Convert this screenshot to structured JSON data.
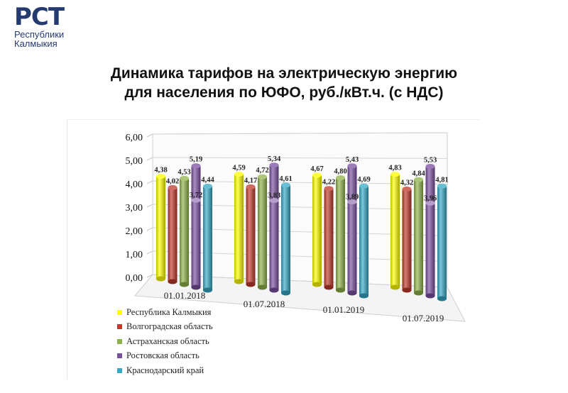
{
  "logo": {
    "mark": "РСТ",
    "line1": "Республики",
    "line2": "Калмыкия"
  },
  "title": {
    "line1": "Динамика тарифов на электрическую энергию",
    "line2": "для населения по ЮФО, руб./кВт.ч. (с НДС)"
  },
  "chart_data": {
    "type": "bar",
    "categories": [
      "01.01.2018",
      "01.07.2018",
      "01.01.2019",
      "01.07.2019"
    ],
    "series": [
      {
        "name": "Республика Калмыкия",
        "color": "#ffff00",
        "values": [
          "4,38",
          "4,59",
          "4,67",
          "4,83"
        ]
      },
      {
        "name": "Волгоградская область",
        "color": "#c0392b",
        "values": [
          "4,02",
          "4,17",
          "4,22",
          "4,32"
        ]
      },
      {
        "name": "Астраханская область",
        "color": "#8db348",
        "values": [
          "4,53",
          "4,72",
          "4,80",
          "4,84"
        ]
      },
      {
        "name": "Ростовская область",
        "color": "#7b4fa0",
        "values": [
          "5,19",
          "5,34",
          "5,43",
          "5,53"
        ]
      },
      {
        "name": "Краснодарский край",
        "color": "#35a9c6",
        "values": [
          "4,44",
          "4,61",
          "4,69",
          "4,81"
        ]
      }
    ],
    "inner_labels": [
      "3,72",
      "3,83",
      "3,89",
      "3,96"
    ],
    "yticks": [
      "0,00",
      "1,00",
      "2,00",
      "3,00",
      "4,00",
      "5,00",
      "6,00"
    ],
    "ylim": [
      0,
      6
    ],
    "legend_position": "bottom-left",
    "grid": true
  }
}
